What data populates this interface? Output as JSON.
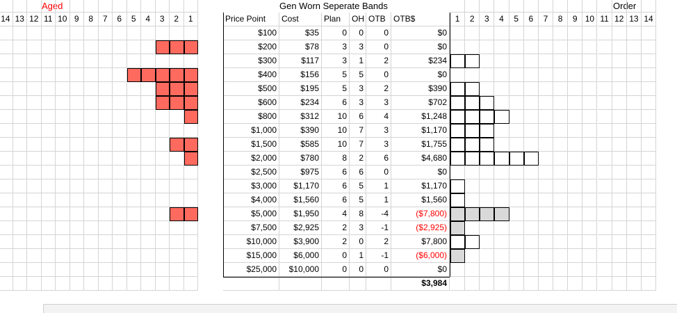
{
  "headers": {
    "aged": "Aged",
    "gen": "Gen Worn Seperate Bands",
    "order": "Order"
  },
  "aged_cols": [
    "14",
    "13",
    "12",
    "11",
    "10",
    "9",
    "8",
    "7",
    "6",
    "5",
    "4",
    "3",
    "2",
    "1"
  ],
  "order_cols": [
    "1",
    "2",
    "3",
    "4",
    "5",
    "6",
    "7",
    "8",
    "9",
    "10",
    "11",
    "12",
    "13",
    "14"
  ],
  "table_headers": {
    "price_point": "Price Point",
    "cost": "Cost",
    "plan": "Plan",
    "oh": "OH",
    "otb": "OTB",
    "otb_dollar": "OTB$"
  },
  "rows": [
    {
      "price": "$100",
      "cost": "$35",
      "plan": "0",
      "oh": "0",
      "otb": "0",
      "otbd": "$0",
      "neg": false,
      "aged": 0,
      "order": 0,
      "order_grey": false
    },
    {
      "price": "$200",
      "cost": "$78",
      "plan": "3",
      "oh": "3",
      "otb": "0",
      "otbd": "$0",
      "neg": false,
      "aged": 3,
      "order": 0,
      "order_grey": false
    },
    {
      "price": "$300",
      "cost": "$117",
      "plan": "3",
      "oh": "1",
      "otb": "2",
      "otbd": "$234",
      "neg": false,
      "aged": 0,
      "order": 2,
      "order_grey": false
    },
    {
      "price": "$400",
      "cost": "$156",
      "plan": "5",
      "oh": "5",
      "otb": "0",
      "otbd": "$0",
      "neg": false,
      "aged": 5,
      "order": 0,
      "order_grey": false
    },
    {
      "price": "$500",
      "cost": "$195",
      "plan": "5",
      "oh": "3",
      "otb": "2",
      "otbd": "$390",
      "neg": false,
      "aged": 3,
      "order": 2,
      "order_grey": false
    },
    {
      "price": "$600",
      "cost": "$234",
      "plan": "6",
      "oh": "3",
      "otb": "3",
      "otbd": "$702",
      "neg": false,
      "aged": 3,
      "order": 3,
      "order_grey": false
    },
    {
      "price": "$800",
      "cost": "$312",
      "plan": "10",
      "oh": "6",
      "otb": "4",
      "otbd": "$1,248",
      "neg": false,
      "aged": 1,
      "order": 4,
      "order_grey": false
    },
    {
      "price": "$1,000",
      "cost": "$390",
      "plan": "10",
      "oh": "7",
      "otb": "3",
      "otbd": "$1,170",
      "neg": false,
      "aged": 0,
      "order": 3,
      "order_grey": false
    },
    {
      "price": "$1,500",
      "cost": "$585",
      "plan": "10",
      "oh": "7",
      "otb": "3",
      "otbd": "$1,755",
      "neg": false,
      "aged": 2,
      "order": 3,
      "order_grey": false
    },
    {
      "price": "$2,000",
      "cost": "$780",
      "plan": "8",
      "oh": "2",
      "otb": "6",
      "otbd": "$4,680",
      "neg": false,
      "aged": 1,
      "order": 6,
      "order_grey": false
    },
    {
      "price": "$2,500",
      "cost": "$975",
      "plan": "6",
      "oh": "6",
      "otb": "0",
      "otbd": "$0",
      "neg": false,
      "aged": 0,
      "order": 0,
      "order_grey": false
    },
    {
      "price": "$3,000",
      "cost": "$1,170",
      "plan": "6",
      "oh": "5",
      "otb": "1",
      "otbd": "$1,170",
      "neg": false,
      "aged": 0,
      "order": 1,
      "order_grey": false
    },
    {
      "price": "$4,000",
      "cost": "$1,560",
      "plan": "6",
      "oh": "5",
      "otb": "1",
      "otbd": "$1,560",
      "neg": false,
      "aged": 0,
      "order": 1,
      "order_grey": false
    },
    {
      "price": "$5,000",
      "cost": "$1,950",
      "plan": "4",
      "oh": "8",
      "otb": "-4",
      "otbd": "($7,800)",
      "neg": true,
      "aged": 2,
      "order": 4,
      "order_grey": true
    },
    {
      "price": "$7,500",
      "cost": "$2,925",
      "plan": "2",
      "oh": "3",
      "otb": "-1",
      "otbd": "($2,925)",
      "neg": true,
      "aged": 0,
      "order": 1,
      "order_grey": true
    },
    {
      "price": "$10,000",
      "cost": "$3,900",
      "plan": "2",
      "oh": "0",
      "otb": "2",
      "otbd": "$7,800",
      "neg": false,
      "aged": 0,
      "order": 2,
      "order_grey": false
    },
    {
      "price": "$15,000",
      "cost": "$6,000",
      "plan": "0",
      "oh": "1",
      "otb": "-1",
      "otbd": "($6,000)",
      "neg": true,
      "aged": 0,
      "order": 1,
      "order_grey": true
    },
    {
      "price": "$25,000",
      "cost": "$10,000",
      "plan": "0",
      "oh": "0",
      "otb": "0",
      "otbd": "$0",
      "neg": false,
      "aged": 0,
      "order": 0,
      "order_grey": false
    }
  ],
  "total": "$3,984",
  "colors": {
    "aged_fill": "#ff6a5f",
    "neg_fill": "#d9d9d9",
    "neg_text": "#ff0000",
    "grid": "#d4d4d4"
  }
}
